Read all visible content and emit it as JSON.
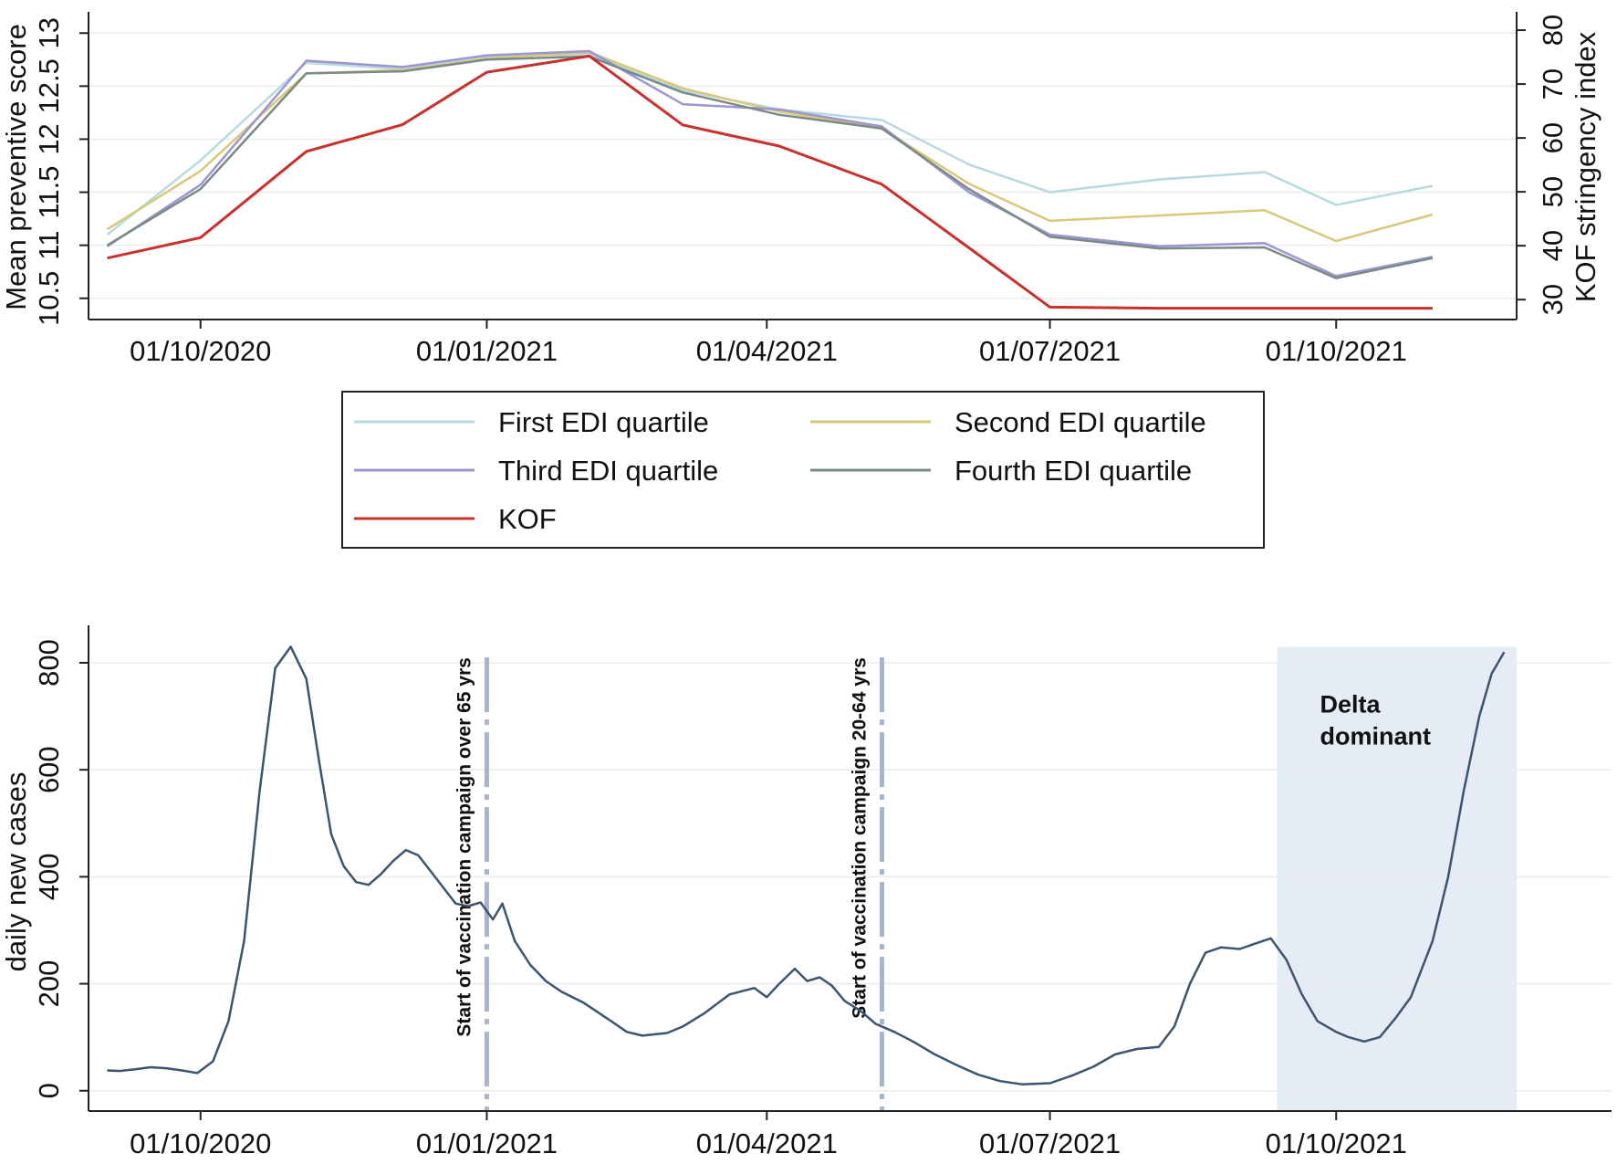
{
  "chart_data": [
    {
      "type": "line",
      "title": "",
      "xlabel": "",
      "ylabel": "Mean preventive score",
      "ylabel_right": "KOF stringency index",
      "x_ticks": [
        "01/10/2020",
        "01/01/2021",
        "01/04/2021",
        "01/07/2021",
        "01/10/2021"
      ],
      "y_ticks": [
        "10.5",
        "11",
        "11.5",
        "12",
        "12.5",
        "13"
      ],
      "y2_ticks": [
        "30",
        "40",
        "50",
        "60",
        "70",
        "80"
      ],
      "ylim": [
        10.3,
        13.2
      ],
      "y2lim": [
        26.3,
        83.4
      ],
      "xlim": [
        "2020-08-26",
        "2021-11-28"
      ],
      "grid": true,
      "legend_position": "bottom",
      "x": [
        "2020-09-01",
        "2020-10-01",
        "2020-11-04",
        "2020-12-05",
        "2021-01-01",
        "2021-02-03",
        "2021-03-05",
        "2021-04-05",
        "2021-05-08",
        "2021-06-05",
        "2021-07-01",
        "2021-08-05",
        "2021-09-08",
        "2021-10-01",
        "2021-11-01"
      ],
      "series": [
        {
          "name": "First EDI quartile",
          "color": "#b7d9df",
          "axis": "left",
          "values": [
            11.1,
            11.8,
            12.72,
            12.66,
            12.78,
            12.8,
            12.46,
            12.28,
            12.18,
            11.76,
            11.5,
            11.62,
            11.69,
            11.38,
            11.56
          ]
        },
        {
          "name": "Second EDI quartile",
          "color": "#d8c97a",
          "axis": "left",
          "values": [
            11.15,
            11.7,
            12.62,
            12.65,
            12.76,
            12.82,
            12.48,
            12.26,
            12.1,
            11.58,
            11.23,
            11.28,
            11.33,
            11.04,
            11.29
          ]
        },
        {
          "name": "Third EDI quartile",
          "color": "#9c95d2",
          "axis": "left",
          "values": [
            10.99,
            11.57,
            12.74,
            12.68,
            12.79,
            12.83,
            12.33,
            12.28,
            12.12,
            11.5,
            11.1,
            10.99,
            11.02,
            10.71,
            10.89
          ]
        },
        {
          "name": "Fourth EDI quartile",
          "color": "#7a8a86",
          "axis": "left",
          "values": [
            11.0,
            11.53,
            12.62,
            12.64,
            12.75,
            12.78,
            12.44,
            12.23,
            12.1,
            11.53,
            11.08,
            10.97,
            10.98,
            10.69,
            10.88
          ]
        },
        {
          "name": "KOF",
          "color": "#c8302c",
          "axis": "right",
          "values": [
            37.7,
            41.5,
            57.5,
            62.5,
            72.2,
            75.2,
            62.4,
            58.5,
            51.4,
            39.6,
            28.6,
            28.4,
            28.4,
            28.4,
            28.4
          ]
        }
      ]
    },
    {
      "type": "line",
      "title": "",
      "xlabel": "",
      "ylabel": "daily new cases",
      "x_ticks": [
        "01/10/2020",
        "01/01/2021",
        "01/04/2021",
        "01/07/2021",
        "01/10/2021"
      ],
      "y_ticks": [
        "0",
        "200",
        "400",
        "600",
        "800"
      ],
      "ylim": [
        -38,
        870
      ],
      "xlim": [
        "2020-08-26",
        "2021-11-28"
      ],
      "grid": true,
      "series": [
        {
          "name": "",
          "color": "#3c546e",
          "x": [
            "2020-09-01",
            "2020-09-05",
            "2020-09-10",
            "2020-09-15",
            "2020-09-20",
            "2020-09-25",
            "2020-09-30",
            "2020-10-05",
            "2020-10-10",
            "2020-10-15",
            "2020-10-20",
            "2020-10-25",
            "2020-10-30",
            "2020-11-04",
            "2020-11-08",
            "2020-11-12",
            "2020-11-16",
            "2020-11-20",
            "2020-11-24",
            "2020-11-28",
            "2020-12-02",
            "2020-12-06",
            "2020-12-10",
            "2020-12-14",
            "2020-12-18",
            "2020-12-22",
            "2020-12-26",
            "2020-12-30",
            "2021-01-03",
            "2021-01-06",
            "2021-01-10",
            "2021-01-15",
            "2021-01-20",
            "2021-01-25",
            "2021-02-01",
            "2021-02-10",
            "2021-02-15",
            "2021-02-20",
            "2021-02-28",
            "2021-03-05",
            "2021-03-12",
            "2021-03-20",
            "2021-03-28",
            "2021-04-01",
            "2021-04-05",
            "2021-04-10",
            "2021-04-14",
            "2021-04-18",
            "2021-04-22",
            "2021-04-26",
            "2021-05-01",
            "2021-05-06",
            "2021-05-12",
            "2021-05-18",
            "2021-05-25",
            "2021-06-01",
            "2021-06-08",
            "2021-06-15",
            "2021-06-22",
            "2021-07-01",
            "2021-07-08",
            "2021-07-15",
            "2021-07-22",
            "2021-07-29",
            "2021-08-05",
            "2021-08-10",
            "2021-08-15",
            "2021-08-20",
            "2021-08-25",
            "2021-08-31",
            "2021-09-05",
            "2021-09-10",
            "2021-09-15",
            "2021-09-20",
            "2021-09-25",
            "2021-10-01",
            "2021-10-05",
            "2021-10-10",
            "2021-10-15",
            "2021-10-20",
            "2021-10-25",
            "2021-11-01",
            "2021-11-06",
            "2021-11-11",
            "2021-11-16",
            "2021-11-20",
            "2021-11-24"
          ],
          "values": [
            38,
            37,
            40,
            44,
            42,
            38,
            33,
            55,
            130,
            280,
            560,
            790,
            830,
            770,
            620,
            480,
            420,
            390,
            385,
            405,
            430,
            450,
            440,
            410,
            380,
            350,
            345,
            352,
            320,
            350,
            280,
            235,
            205,
            185,
            165,
            130,
            110,
            103,
            108,
            120,
            145,
            180,
            192,
            175,
            200,
            228,
            205,
            212,
            196,
            168,
            150,
            125,
            110,
            92,
            68,
            48,
            30,
            18,
            12,
            14,
            28,
            45,
            68,
            78,
            82,
            120,
            200,
            258,
            268,
            265,
            275,
            285,
            245,
            180,
            130,
            110,
            100,
            92,
            100,
            135,
            175,
            280,
            400,
            560,
            700,
            780,
            820
          ]
        }
      ],
      "annotations": [
        {
          "type": "vline",
          "x": "2021-01-01",
          "label": "Start of vaccination campaign over 65 yrs"
        },
        {
          "type": "vline",
          "x": "2021-05-08",
          "label": "Start of vaccination campaign 20-64 yrs"
        },
        {
          "type": "region",
          "x_start": "2021-09-12",
          "x_end": "2021-11-28",
          "label": [
            "Delta",
            "dominant"
          ],
          "color": "#e6ecf5"
        }
      ]
    }
  ]
}
